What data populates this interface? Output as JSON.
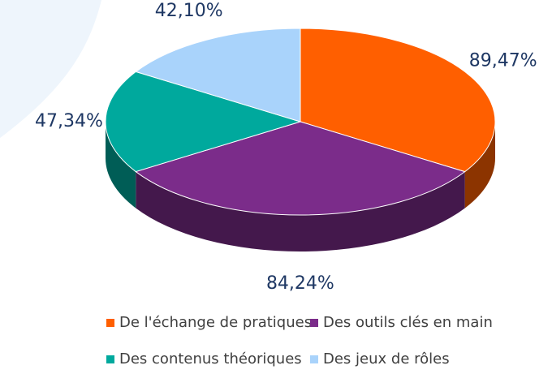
{
  "chart_data": {
    "type": "pie",
    "categories": [
      "De l'échange de pratiques",
      "Des outils clés en main",
      "Des contenus théoriques",
      "Des jeux de rôles"
    ],
    "values": [
      89.47,
      84.24,
      47.34,
      42.1
    ],
    "value_labels": [
      "89,47%",
      "84,24%",
      "47,34%",
      "42,10%"
    ],
    "colors": [
      "#ff5f00",
      "#7b2c8a",
      "#00a99d",
      "#a9d3fb"
    ],
    "legend": "bottom"
  }
}
